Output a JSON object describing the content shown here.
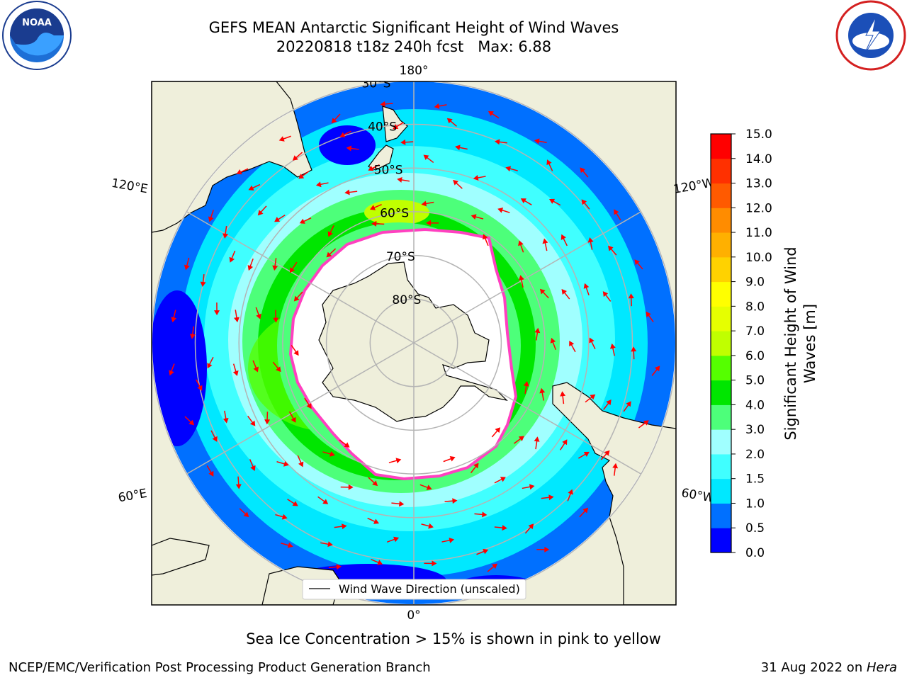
{
  "title": {
    "line1": "GEFS MEAN Antarctic Significant Height of Wind Waves",
    "line2": "20220818 t18z 240h fcst   Max: 6.88"
  },
  "map": {
    "lon_labels": [
      {
        "text": "180°",
        "lon": 180
      },
      {
        "text": "120°E",
        "lon": 120
      },
      {
        "text": "60°E",
        "lon": 60
      },
      {
        "text": "0°",
        "lon": 0
      },
      {
        "text": "60°W",
        "lon": -60
      },
      {
        "text": "120°W",
        "lon": -120
      }
    ],
    "lat_labels": [
      {
        "text": "30°S",
        "lat": -30
      },
      {
        "text": "40°S",
        "lat": -40
      },
      {
        "text": "50°S",
        "lat": -50
      },
      {
        "text": "60°S",
        "lat": -60
      },
      {
        "text": "70°S",
        "lat": -70
      },
      {
        "text": "80°S",
        "lat": -80
      }
    ],
    "legend_label": "Wind Wave Direction (unscaled)"
  },
  "colorbar": {
    "label_line1": "Significant Height of Wind",
    "label_line2": "Waves [m]",
    "ticks": [
      "0.0",
      "0.5",
      "1.0",
      "1.5",
      "2.0",
      "3.0",
      "4.0",
      "5.0",
      "6.0",
      "7.0",
      "8.0",
      "9.0",
      "10.0",
      "11.0",
      "12.0",
      "13.0",
      "14.0",
      "15.0"
    ],
    "colors": [
      "#0000ff",
      "#0070ff",
      "#00e8ff",
      "#40ffff",
      "#a0ffff",
      "#4dff7a",
      "#00e600",
      "#55ff00",
      "#c0ff00",
      "#e6ff00",
      "#ffff00",
      "#ffd200",
      "#ffb000",
      "#ff8c00",
      "#ff5a00",
      "#ff3000",
      "#ff0000"
    ]
  },
  "colors": {
    "land": "#efefdb",
    "ice": "#ffffff",
    "ice_edge": "#ff40c0",
    "arrow": "#ff0000",
    "grid": "#b4b4b4"
  },
  "subtitle": "Sea Ice Concentration > 15% is shown in pink to yellow",
  "footer": {
    "left": "NCEP/EMC/Verification Post Processing Product Generation Branch",
    "date": "31 Aug 2022 on ",
    "host": "Hera"
  }
}
